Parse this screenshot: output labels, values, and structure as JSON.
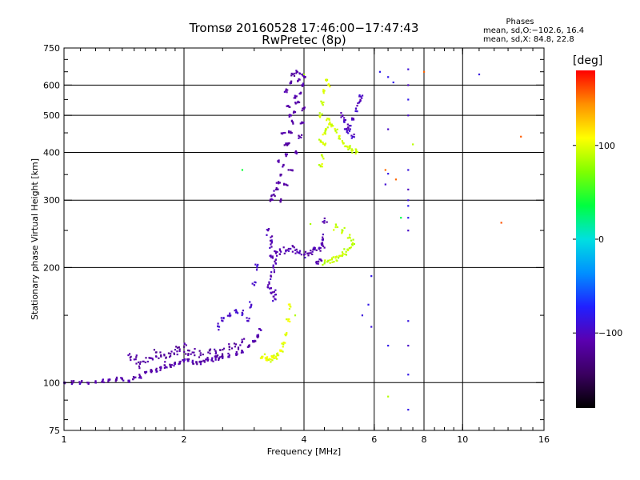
{
  "header": {
    "title_line1": "Tromsø 20160528 17:46:00−17:47:43",
    "title_line2": "RwPretec (8p)",
    "phase_heading": "Phases",
    "phase_o": "mean, sd,O:−102.6, 16.4",
    "phase_x": "mean, sd,X:  84.8, 22.8"
  },
  "colorbar": {
    "unit": "[deg]",
    "ticks": [
      {
        "value": 100,
        "label": "100"
      },
      {
        "value": 0,
        "label": "0"
      },
      {
        "value": -100,
        "label": "−100"
      }
    ],
    "range": [
      -180,
      180
    ],
    "colors": [
      "#000000",
      "#3a0060",
      "#5a00b0",
      "#2020ff",
      "#0090ff",
      "#00e0e0",
      "#00ff40",
      "#80ff00",
      "#ffff00",
      "#ff9000",
      "#ff0000"
    ]
  },
  "chart_data": {
    "type": "scatter",
    "title": "Tromsø 20160528 17:46:00−17:47:43",
    "subtitle": "RwPretec (8p)",
    "xlabel": "Frequency [MHz]",
    "ylabel": "Stationary phase Virtual Height [km]",
    "x_scale": "log",
    "y_scale": "log",
    "xlim": [
      1,
      16
    ],
    "ylim": [
      75,
      750
    ],
    "x_ticks": [
      {
        "value": 1,
        "label": "1"
      },
      {
        "value": 2,
        "label": "2"
      },
      {
        "value": 4,
        "label": "4"
      },
      {
        "value": 6,
        "label": "6"
      },
      {
        "value": 8,
        "label": "8"
      },
      {
        "value": 10,
        "label": "10"
      },
      {
        "value": 16,
        "label": "16"
      }
    ],
    "y_ticks": [
      {
        "value": 75,
        "label": "75"
      },
      {
        "value": 100,
        "label": "100"
      },
      {
        "value": 200,
        "label": "200"
      },
      {
        "value": 300,
        "label": "300"
      },
      {
        "value": 400,
        "label": "400"
      },
      {
        "value": 500,
        "label": "500"
      },
      {
        "value": 600,
        "label": "600"
      },
      {
        "value": 750,
        "label": "750"
      }
    ],
    "x_gridlines": [
      2,
      4,
      6,
      8,
      10
    ],
    "y_gridlines": [
      100,
      200,
      300,
      400,
      500,
      600
    ],
    "grid": true,
    "color_scale": "phase [deg]",
    "traces": [
      {
        "phase": -110,
        "spread_f": 0.008,
        "spread_h": 0.012,
        "points": [
          [
            1.0,
            100
          ],
          [
            1.05,
            100
          ],
          [
            1.1,
            100
          ],
          [
            1.15,
            100
          ],
          [
            1.2,
            101
          ],
          [
            1.25,
            101
          ],
          [
            1.3,
            102
          ],
          [
            1.35,
            102
          ],
          [
            1.4,
            102
          ],
          [
            1.45,
            101
          ],
          [
            1.5,
            103
          ],
          [
            1.55,
            104
          ],
          [
            1.6,
            106
          ],
          [
            1.65,
            107
          ],
          [
            1.7,
            108
          ],
          [
            1.75,
            109
          ],
          [
            1.8,
            110
          ],
          [
            1.85,
            111
          ],
          [
            1.9,
            112
          ],
          [
            1.95,
            113
          ],
          [
            2.0,
            114
          ],
          [
            2.05,
            114
          ],
          [
            2.1,
            113
          ],
          [
            2.15,
            113
          ],
          [
            2.2,
            113
          ],
          [
            2.25,
            114
          ],
          [
            2.3,
            115
          ],
          [
            2.35,
            115
          ],
          [
            2.4,
            116
          ],
          [
            2.45,
            116
          ],
          [
            2.5,
            117
          ],
          [
            2.6,
            118
          ],
          [
            2.7,
            119
          ],
          [
            2.8,
            121
          ],
          [
            2.9,
            124
          ],
          [
            3.0,
            128
          ],
          [
            3.05,
            132
          ],
          [
            3.1,
            138
          ]
        ]
      },
      {
        "phase": -115,
        "spread_f": 0.015,
        "spread_h": 0.03,
        "points": [
          [
            1.45,
            118
          ],
          [
            1.5,
            115
          ],
          [
            1.55,
            112
          ],
          [
            1.6,
            113
          ],
          [
            1.65,
            116
          ],
          [
            1.7,
            120
          ],
          [
            1.75,
            118
          ],
          [
            1.8,
            116
          ],
          [
            1.85,
            119
          ],
          [
            1.9,
            122
          ],
          [
            1.95,
            121
          ],
          [
            2.0,
            124
          ],
          [
            2.05,
            119
          ],
          [
            2.1,
            120
          ],
          [
            2.2,
            118
          ],
          [
            2.3,
            120
          ],
          [
            2.4,
            121
          ],
          [
            2.5,
            122
          ],
          [
            2.6,
            124
          ],
          [
            2.7,
            126
          ],
          [
            2.8,
            128
          ]
        ]
      },
      {
        "phase": -95,
        "spread_f": 0.01,
        "spread_h": 0.02,
        "points": [
          [
            2.45,
            140
          ],
          [
            2.5,
            145
          ],
          [
            2.6,
            150
          ],
          [
            2.7,
            155
          ],
          [
            2.8,
            152
          ],
          [
            2.9,
            145
          ],
          [
            2.95,
            160
          ],
          [
            3.0,
            180
          ],
          [
            3.05,
            200
          ]
        ]
      },
      {
        "phase": 100,
        "spread_f": 0.012,
        "spread_h": 0.015,
        "points": [
          [
            3.15,
            117
          ],
          [
            3.2,
            116
          ],
          [
            3.25,
            115
          ],
          [
            3.3,
            115
          ],
          [
            3.35,
            116
          ],
          [
            3.4,
            117
          ],
          [
            3.45,
            118
          ],
          [
            3.5,
            121
          ],
          [
            3.55,
            126
          ],
          [
            3.6,
            133
          ],
          [
            3.65,
            145
          ],
          [
            3.7,
            158
          ]
        ]
      },
      {
        "phase": -105,
        "spread_f": 0.008,
        "spread_h": 0.03,
        "points": [
          [
            3.25,
            180
          ],
          [
            3.3,
            172
          ],
          [
            3.35,
            168
          ],
          [
            3.4,
            170
          ],
          [
            3.3,
            190
          ],
          [
            3.35,
            200
          ],
          [
            3.4,
            210
          ],
          [
            3.3,
            230
          ],
          [
            3.25,
            250
          ],
          [
            3.3,
            240
          ]
        ]
      },
      {
        "phase": -108,
        "spread_f": 0.015,
        "spread_h": 0.02,
        "points": [
          [
            3.3,
            215
          ],
          [
            3.4,
            218
          ],
          [
            3.5,
            220
          ],
          [
            3.6,
            222
          ],
          [
            3.7,
            224
          ],
          [
            3.8,
            222
          ],
          [
            3.9,
            218
          ],
          [
            4.0,
            216
          ],
          [
            4.1,
            218
          ],
          [
            4.2,
            220
          ],
          [
            4.3,
            222
          ],
          [
            4.4,
            225
          ],
          [
            4.45,
            240
          ],
          [
            4.5,
            265
          ],
          [
            4.45,
            230
          ],
          [
            4.4,
            210
          ],
          [
            4.3,
            205
          ]
        ]
      },
      {
        "phase": -112,
        "spread_f": 0.012,
        "spread_h": 0.01,
        "points": [
          [
            3.3,
            300
          ],
          [
            3.35,
            310
          ],
          [
            3.4,
            320
          ],
          [
            3.45,
            335
          ],
          [
            3.5,
            350
          ],
          [
            3.55,
            370
          ],
          [
            3.6,
            395
          ],
          [
            3.65,
            420
          ],
          [
            3.7,
            450
          ],
          [
            3.75,
            480
          ],
          [
            3.8,
            510
          ],
          [
            3.85,
            540
          ],
          [
            3.9,
            570
          ],
          [
            3.95,
            600
          ],
          [
            4.0,
            630
          ],
          [
            3.5,
            300
          ],
          [
            3.6,
            330
          ],
          [
            3.7,
            360
          ],
          [
            3.8,
            400
          ],
          [
            3.9,
            440
          ],
          [
            3.95,
            480
          ],
          [
            4.0,
            520
          ],
          [
            3.6,
            420
          ],
          [
            3.7,
            500
          ],
          [
            3.8,
            560
          ],
          [
            3.9,
            620
          ],
          [
            3.6,
            580
          ],
          [
            3.7,
            610
          ],
          [
            3.75,
            640
          ],
          [
            3.85,
            650
          ],
          [
            3.95,
            640
          ],
          [
            3.45,
            380
          ],
          [
            3.55,
            450
          ],
          [
            3.65,
            530
          ]
        ]
      },
      {
        "phase": 90,
        "spread_f": 0.012,
        "spread_h": 0.02,
        "points": [
          [
            4.5,
            205
          ],
          [
            4.6,
            208
          ],
          [
            4.7,
            210
          ],
          [
            4.8,
            212
          ],
          [
            4.9,
            214
          ],
          [
            5.0,
            216
          ],
          [
            5.1,
            220
          ],
          [
            5.2,
            225
          ],
          [
            5.3,
            232
          ],
          [
            5.2,
            240
          ],
          [
            5.0,
            250
          ],
          [
            4.8,
            255
          ]
        ]
      },
      {
        "phase": 95,
        "spread_f": 0.01,
        "spread_h": 0.015,
        "points": [
          [
            4.4,
            370
          ],
          [
            4.45,
            390
          ],
          [
            4.5,
            420
          ],
          [
            4.55,
            460
          ],
          [
            4.6,
            490
          ],
          [
            4.65,
            475
          ],
          [
            4.7,
            470
          ],
          [
            4.8,
            455
          ],
          [
            4.9,
            440
          ],
          [
            5.0,
            425
          ],
          [
            5.1,
            415
          ],
          [
            5.2,
            410
          ],
          [
            5.3,
            405
          ],
          [
            5.4,
            402
          ],
          [
            4.4,
            500
          ],
          [
            4.45,
            540
          ],
          [
            4.5,
            580
          ],
          [
            4.55,
            620
          ],
          [
            4.6,
            600
          ],
          [
            4.4,
            430
          ],
          [
            4.5,
            450
          ]
        ]
      },
      {
        "phase": -100,
        "spread_f": 0.01,
        "spread_h": 0.02,
        "points": [
          [
            5.0,
            500
          ],
          [
            5.05,
            480
          ],
          [
            5.1,
            460
          ],
          [
            5.2,
            470
          ],
          [
            5.3,
            490
          ],
          [
            5.4,
            520
          ],
          [
            5.5,
            540
          ],
          [
            5.55,
            560
          ],
          [
            5.3,
            440
          ],
          [
            5.2,
            455
          ]
        ]
      },
      {
        "phase": -90,
        "spread_f": 0.004,
        "spread_h": 0.01,
        "points": [
          [
            7.3,
            660
          ],
          [
            7.3,
            600
          ],
          [
            7.3,
            550
          ],
          [
            7.3,
            500
          ],
          [
            7.3,
            360
          ],
          [
            7.3,
            320
          ],
          [
            7.3,
            300
          ],
          [
            7.3,
            290
          ],
          [
            7.3,
            270
          ],
          [
            7.3,
            250
          ],
          [
            7.3,
            145
          ],
          [
            7.3,
            125
          ],
          [
            7.3,
            105
          ],
          [
            7.3,
            85
          ],
          [
            6.2,
            650
          ],
          [
            6.5,
            630
          ],
          [
            6.7,
            610
          ],
          [
            6.5,
            460
          ],
          [
            6.4,
            330
          ],
          [
            5.9,
            190
          ],
          [
            5.8,
            160
          ],
          [
            5.9,
            140
          ],
          [
            5.6,
            150
          ],
          [
            6.5,
            125
          ],
          [
            11.0,
            640
          ],
          [
            6.5,
            352
          ]
        ]
      },
      {
        "phase": 150,
        "spread_f": 0.003,
        "spread_h": 0.005,
        "points": [
          [
            12.5,
            262
          ],
          [
            14.0,
            440
          ],
          [
            6.4,
            360
          ],
          [
            6.8,
            340
          ],
          [
            8.0,
            650
          ]
        ]
      },
      {
        "phase": 80,
        "spread_f": 0.004,
        "spread_h": 0.008,
        "points": [
          [
            4.0,
            640
          ],
          [
            4.15,
            260
          ],
          [
            6.5,
            92
          ],
          [
            7.5,
            420
          ],
          [
            3.8,
            150
          ]
        ]
      },
      {
        "phase": 40,
        "spread_f": 0.003,
        "spread_h": 0.005,
        "points": [
          [
            7.0,
            270
          ],
          [
            2.8,
            360
          ]
        ]
      }
    ]
  }
}
